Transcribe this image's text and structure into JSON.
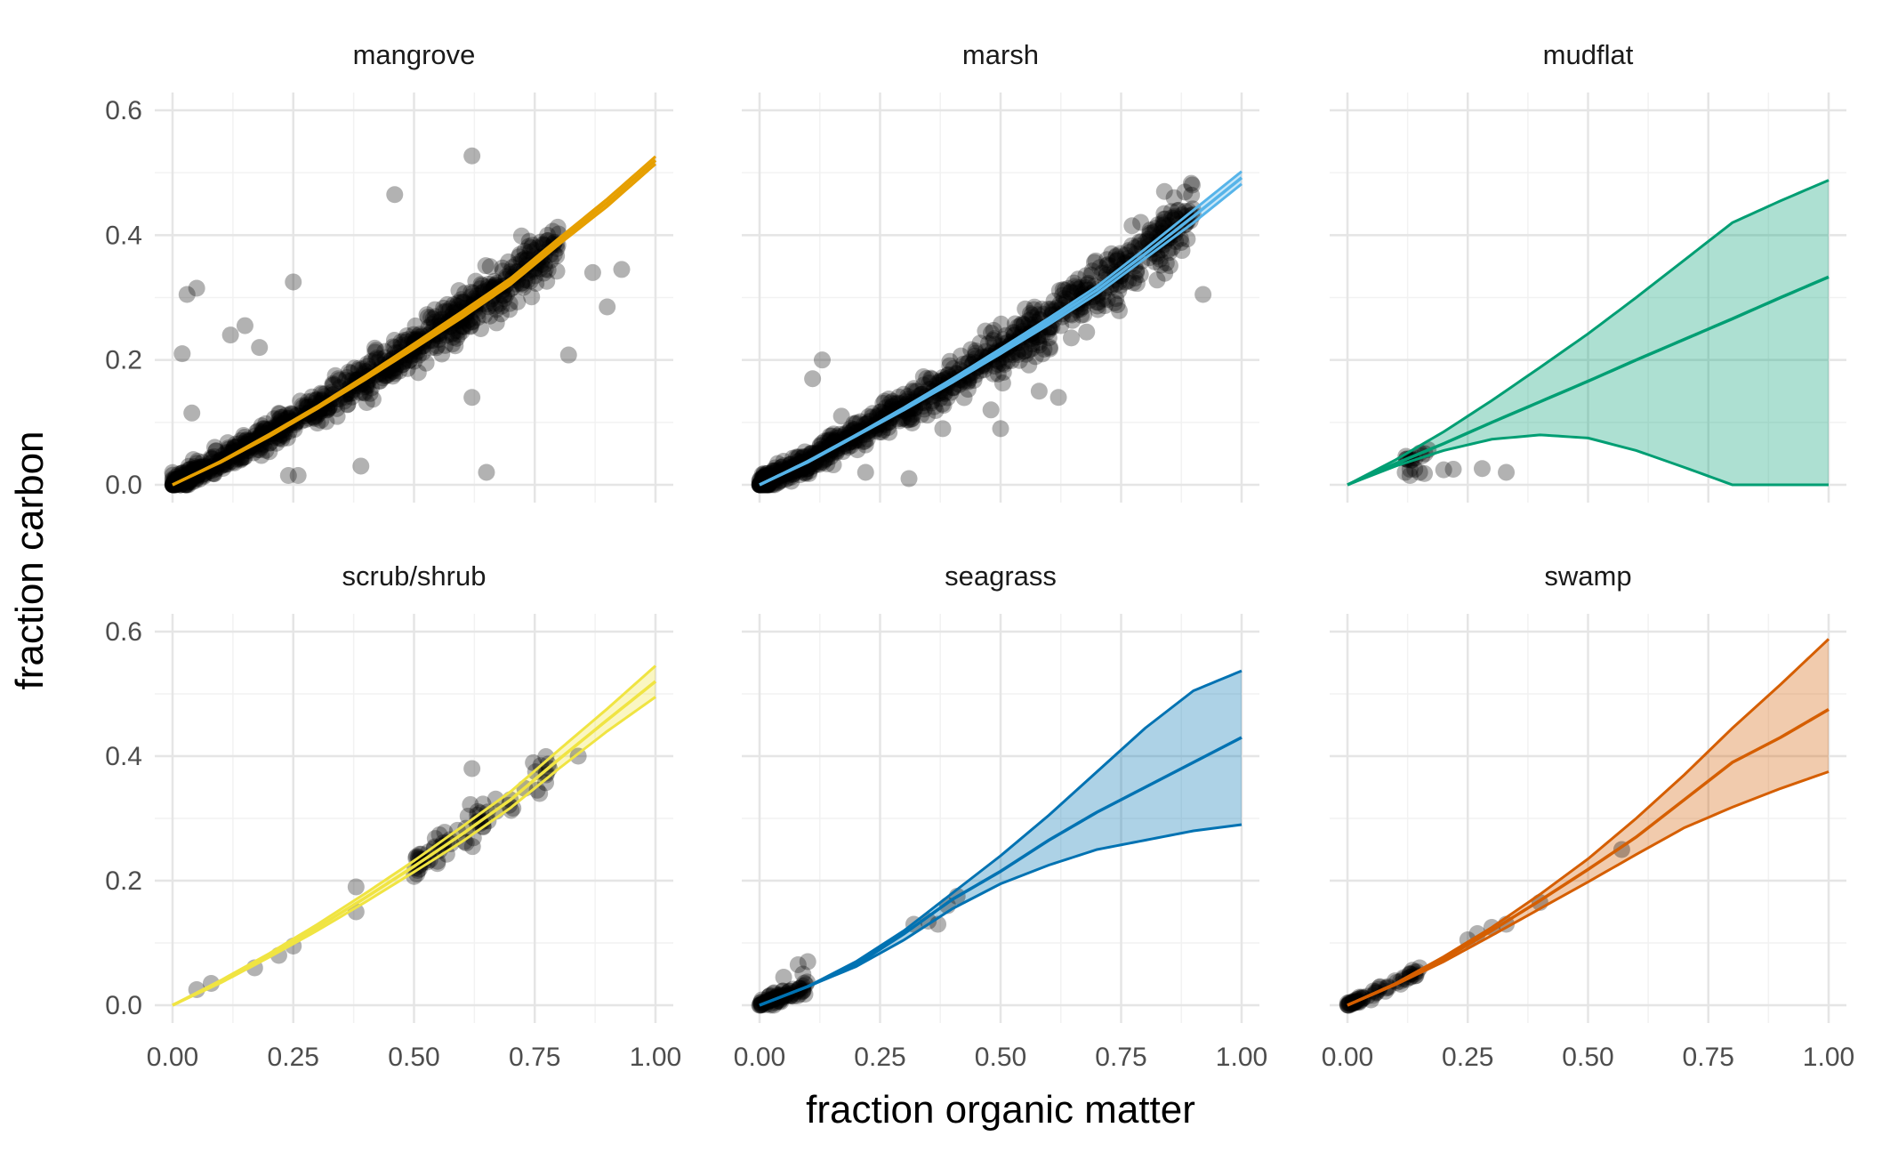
{
  "chart_data": {
    "type": "scatter",
    "layout": "faceted 2x3",
    "xlabel": "fraction organic matter",
    "ylabel": "fraction carbon",
    "xlim": [
      0,
      1
    ],
    "ylim": [
      0,
      0.6
    ],
    "x_ticks": [
      0,
      0.25,
      0.5,
      0.75,
      1
    ],
    "x_tick_labels": [
      "0.00",
      "0.25",
      "0.50",
      "0.75",
      "1.00"
    ],
    "y_ticks": [
      0,
      0.2,
      0.4,
      0.6
    ],
    "y_tick_labels": [
      "0.0",
      "0.2",
      "0.4",
      "0.6"
    ],
    "grid": true,
    "point_color": "#000000",
    "point_opacity": 0.3,
    "panels": [
      {
        "name": "mangrove",
        "color": "#E69F00",
        "fit": {
          "x": [
            0,
            0.1,
            0.2,
            0.3,
            0.4,
            0.5,
            0.6,
            0.7,
            0.8,
            0.9,
            1.0
          ],
          "y": [
            0,
            0.037,
            0.079,
            0.124,
            0.172,
            0.222,
            0.273,
            0.326,
            0.39,
            0.452,
            0.52
          ]
        },
        "ribbon": {
          "upper": [
            0,
            0.038,
            0.081,
            0.126,
            0.175,
            0.226,
            0.278,
            0.331,
            0.395,
            0.458,
            0.526
          ],
          "lower": [
            0,
            0.036,
            0.077,
            0.122,
            0.169,
            0.218,
            0.268,
            0.321,
            0.385,
            0.446,
            0.514
          ]
        },
        "points_labeled": [
          [
            0.62,
            0.527
          ],
          [
            0.46,
            0.465
          ],
          [
            0.03,
            0.305
          ],
          [
            0.05,
            0.315
          ],
          [
            0.25,
            0.325
          ],
          [
            0.12,
            0.24
          ],
          [
            0.15,
            0.255
          ],
          [
            0.18,
            0.22
          ],
          [
            0.02,
            0.21
          ],
          [
            0.04,
            0.115
          ],
          [
            0.82,
            0.208
          ],
          [
            0.9,
            0.285
          ],
          [
            0.93,
            0.345
          ],
          [
            0.87,
            0.34
          ],
          [
            0.62,
            0.14
          ],
          [
            0.39,
            0.03
          ],
          [
            0.65,
            0.02
          ],
          [
            0.24,
            0.015
          ],
          [
            0.26,
            0.015
          ]
        ],
        "cloud": {
          "x_range": [
            0,
            0.8
          ],
          "spread": 0.018,
          "n": 900
        }
      },
      {
        "name": "marsh",
        "color": "#56B4E9",
        "fit": {
          "x": [
            0,
            0.1,
            0.2,
            0.3,
            0.4,
            0.5,
            0.6,
            0.7,
            0.8,
            0.9,
            1.0
          ],
          "y": [
            0,
            0.037,
            0.079,
            0.122,
            0.167,
            0.214,
            0.262,
            0.312,
            0.37,
            0.43,
            0.492
          ]
        },
        "ribbon": {
          "upper": [
            0,
            0.038,
            0.08,
            0.124,
            0.17,
            0.218,
            0.267,
            0.318,
            0.378,
            0.44,
            0.502
          ],
          "lower": [
            0,
            0.036,
            0.078,
            0.12,
            0.164,
            0.21,
            0.257,
            0.306,
            0.363,
            0.42,
            0.482
          ]
        },
        "points_labeled": [
          [
            0.92,
            0.305
          ],
          [
            0.13,
            0.2
          ],
          [
            0.11,
            0.17
          ],
          [
            0.17,
            0.11
          ],
          [
            0.84,
            0.47
          ],
          [
            0.86,
            0.46
          ],
          [
            0.38,
            0.09
          ],
          [
            0.5,
            0.09
          ],
          [
            0.22,
            0.02
          ],
          [
            0.31,
            0.01
          ],
          [
            0.58,
            0.15
          ],
          [
            0.62,
            0.14
          ],
          [
            0.48,
            0.12
          ]
        ],
        "cloud": {
          "x_range": [
            0,
            0.9
          ],
          "spread": 0.02,
          "n": 900
        }
      },
      {
        "name": "mudflat",
        "color": "#009E73",
        "fit": {
          "x": [
            0,
            0.1,
            0.2,
            0.3,
            0.4,
            0.5,
            0.6,
            0.7,
            0.8,
            0.9,
            1.0
          ],
          "y": [
            0,
            0.034,
            0.066,
            0.1,
            0.133,
            0.166,
            0.2,
            0.233,
            0.266,
            0.3,
            0.333
          ]
        },
        "ribbon": {
          "upper": [
            0,
            0.04,
            0.085,
            0.135,
            0.188,
            0.242,
            0.3,
            0.36,
            0.42,
            0.455,
            0.488
          ],
          "lower": [
            0,
            0.03,
            0.055,
            0.073,
            0.08,
            0.075,
            0.055,
            0.028,
            0,
            0,
            0
          ]
        },
        "points_labeled": [
          [
            0.12,
            0.02
          ],
          [
            0.13,
            0.015
          ],
          [
            0.14,
            0.025
          ],
          [
            0.15,
            0.02
          ],
          [
            0.16,
            0.018
          ],
          [
            0.13,
            0.025
          ],
          [
            0.2,
            0.024
          ],
          [
            0.22,
            0.025
          ],
          [
            0.28,
            0.026
          ],
          [
            0.33,
            0.02
          ]
        ],
        "cloud": {
          "x_range": [
            0.12,
            0.17
          ],
          "spread": 0.008,
          "n": 12
        }
      },
      {
        "name": "scrub/shrub",
        "color": "#F0E442",
        "fit": {
          "x": [
            0,
            0.1,
            0.2,
            0.3,
            0.4,
            0.5,
            0.6,
            0.7,
            0.8,
            0.9,
            1.0
          ],
          "y": [
            0,
            0.038,
            0.08,
            0.125,
            0.173,
            0.223,
            0.275,
            0.33,
            0.395,
            0.458,
            0.52
          ]
        },
        "ribbon": {
          "upper": [
            0,
            0.04,
            0.083,
            0.13,
            0.18,
            0.232,
            0.287,
            0.343,
            0.41,
            0.476,
            0.545
          ],
          "lower": [
            0,
            0.036,
            0.077,
            0.12,
            0.166,
            0.214,
            0.263,
            0.317,
            0.38,
            0.44,
            0.495
          ]
        },
        "points_labeled": [
          [
            0.05,
            0.025
          ],
          [
            0.08,
            0.035
          ],
          [
            0.17,
            0.06
          ],
          [
            0.22,
            0.08
          ],
          [
            0.25,
            0.095
          ],
          [
            0.38,
            0.19
          ],
          [
            0.38,
            0.15
          ],
          [
            0.84,
            0.4
          ],
          [
            0.62,
            0.38
          ],
          [
            0.52,
            0.23
          ],
          [
            0.78,
            0.38
          ],
          [
            0.76,
            0.34
          ]
        ],
        "cloud": {
          "x_range": [
            0.5,
            0.78
          ],
          "spread": 0.015,
          "n": 70
        }
      },
      {
        "name": "seagrass",
        "color": "#0072B2",
        "fit": {
          "x": [
            0,
            0.1,
            0.2,
            0.3,
            0.4,
            0.5,
            0.6,
            0.7,
            0.8,
            0.9,
            1.0
          ],
          "y": [
            0,
            0.03,
            0.065,
            0.115,
            0.17,
            0.215,
            0.265,
            0.31,
            0.35,
            0.39,
            0.43
          ]
        },
        "ribbon": {
          "upper": [
            0,
            0.03,
            0.07,
            0.12,
            0.18,
            0.24,
            0.305,
            0.375,
            0.445,
            0.505,
            0.537
          ]
        },
        "ribbon_lower_note": "",
        "ribbon_lower": [
          0,
          0.03,
          0.062,
          0.105,
          0.155,
          0.195,
          0.225,
          0.25,
          0.265,
          0.28,
          0.29
        ],
        "points_labeled": [
          [
            0.32,
            0.13
          ],
          [
            0.35,
            0.135
          ],
          [
            0.37,
            0.13
          ],
          [
            0.39,
            0.16
          ],
          [
            0.41,
            0.175
          ],
          [
            0.1,
            0.07
          ],
          [
            0.08,
            0.065
          ],
          [
            0.05,
            0.045
          ],
          [
            0.09,
            0.05
          ]
        ],
        "cloud": {
          "x_range": [
            0,
            0.1
          ],
          "spread": 0.012,
          "n": 80
        }
      },
      {
        "name": "swamp",
        "color": "#D55E00",
        "fit": {
          "x": [
            0,
            0.1,
            0.2,
            0.3,
            0.4,
            0.5,
            0.6,
            0.7,
            0.8,
            0.9,
            1.0
          ],
          "y": [
            0,
            0.034,
            0.074,
            0.12,
            0.168,
            0.218,
            0.27,
            0.33,
            0.39,
            0.43,
            0.475
          ]
        },
        "ribbon": {
          "upper": [
            0,
            0.035,
            0.078,
            0.125,
            0.178,
            0.235,
            0.3,
            0.37,
            0.445,
            0.515,
            0.588
          ]
        },
        "ribbon_lower": [
          0,
          0.033,
          0.07,
          0.112,
          0.155,
          0.198,
          0.242,
          0.285,
          0.318,
          0.348,
          0.375
        ],
        "points_labeled": [
          [
            0.57,
            0.25
          ],
          [
            0.4,
            0.165
          ],
          [
            0.33,
            0.13
          ],
          [
            0.3,
            0.125
          ],
          [
            0.27,
            0.115
          ],
          [
            0.25,
            0.105
          ],
          [
            0.15,
            0.06
          ],
          [
            0.13,
            0.05
          ]
        ],
        "cloud": {
          "x_range": [
            0,
            0.15
          ],
          "spread": 0.006,
          "n": 60
        }
      }
    ]
  }
}
